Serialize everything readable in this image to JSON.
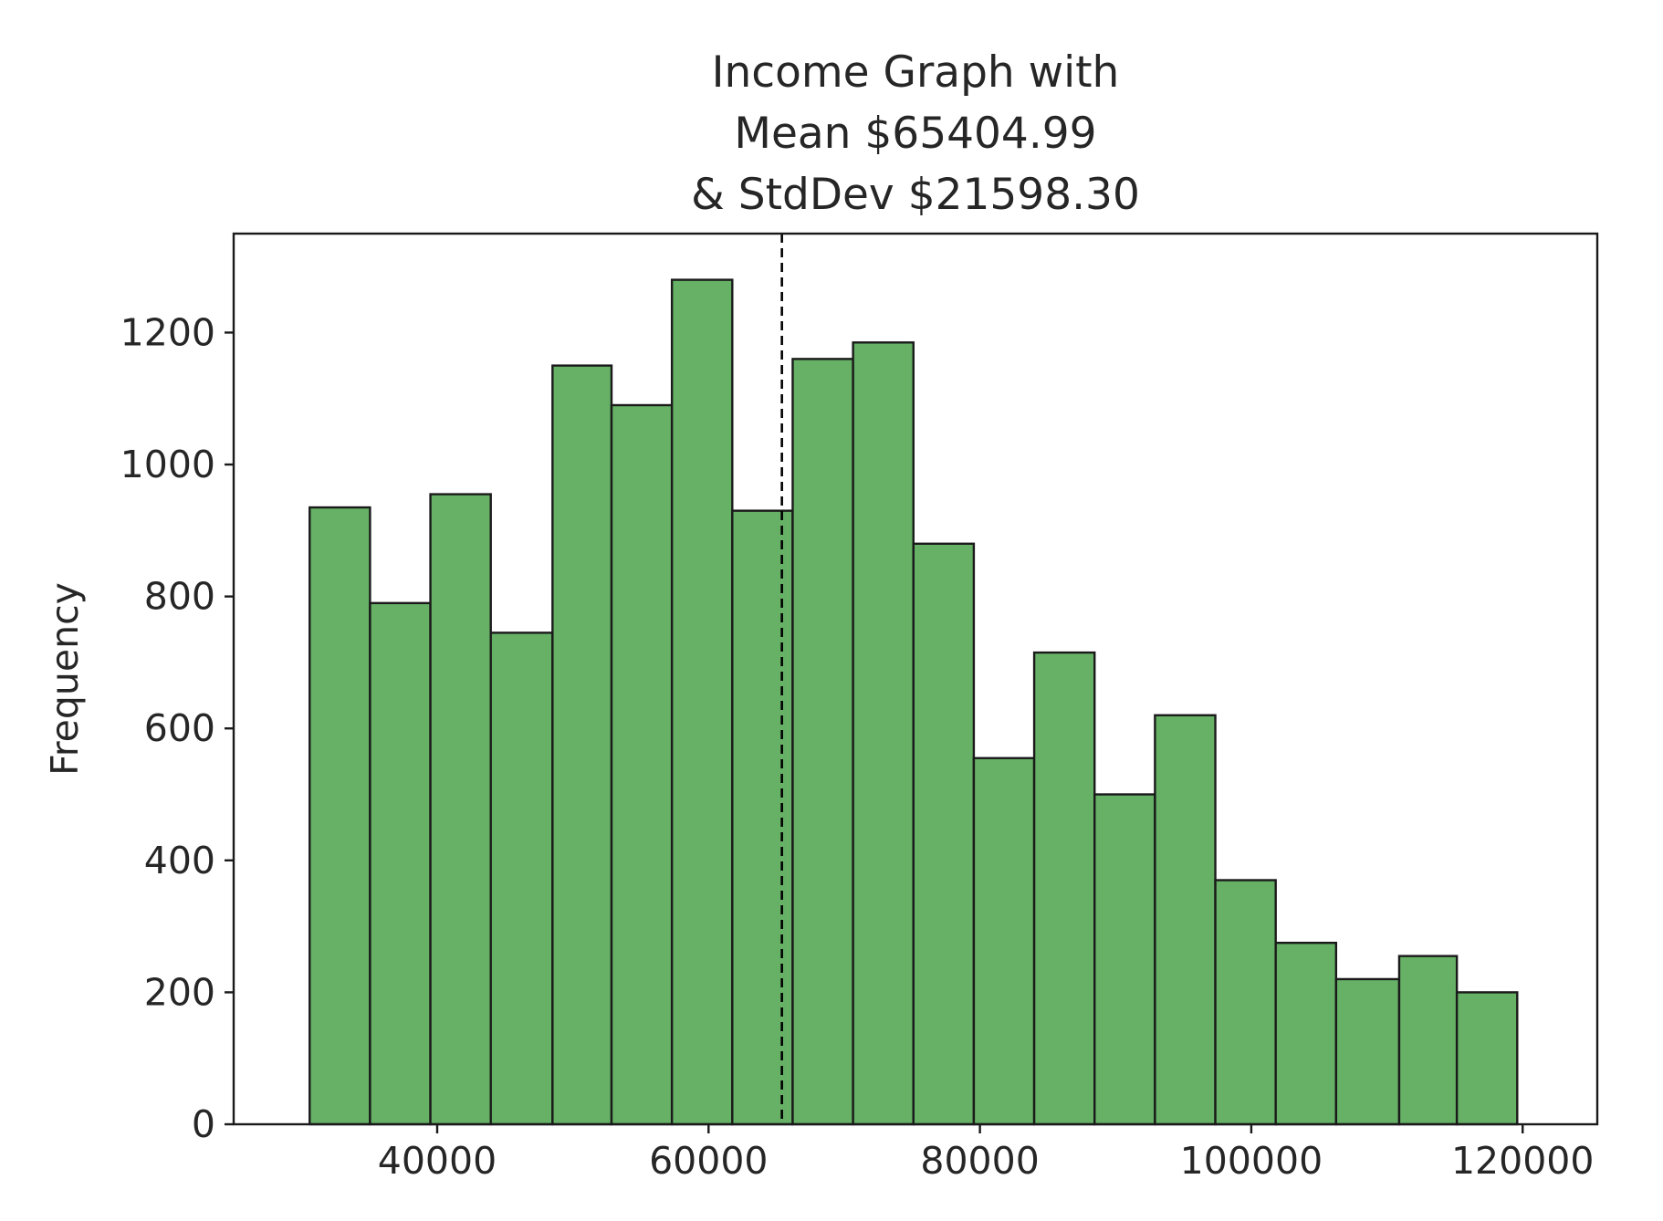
{
  "chart_data": {
    "type": "bar",
    "title_lines": [
      "Income Graph with",
      "Mean $65404.99",
      "& StdDev $21598.30"
    ],
    "xlabel": "",
    "ylabel": "Frequency",
    "xlim": [
      25000,
      125500
    ],
    "ylim": [
      0,
      1350
    ],
    "x_ticks": [
      40000,
      60000,
      80000,
      100000,
      120000
    ],
    "x_tick_labels": [
      "40000",
      "60000",
      "80000",
      "100000",
      "120000"
    ],
    "y_ticks": [
      0,
      200,
      400,
      600,
      800,
      1000,
      1200
    ],
    "y_tick_labels": [
      "0",
      "200",
      "400",
      "600",
      "800",
      "1000",
      "1200"
    ],
    "bin_edges": [
      30600,
      35050,
      39500,
      43950,
      48500,
      52850,
      57300,
      61750,
      66200,
      70650,
      75100,
      79550,
      84000,
      88450,
      92900,
      97350,
      101800,
      106250,
      110900,
      115150,
      119600
    ],
    "values": [
      935,
      790,
      955,
      745,
      1150,
      1090,
      1280,
      930,
      1160,
      1185,
      880,
      555,
      715,
      500,
      620,
      370,
      275,
      220,
      255,
      200
    ],
    "mean_line": 65404.99,
    "colors": {
      "bar_fill": "#66b166",
      "bar_edge": "#1a1a1a",
      "mean_line": "#000000"
    },
    "grid": false,
    "legend": "none"
  }
}
